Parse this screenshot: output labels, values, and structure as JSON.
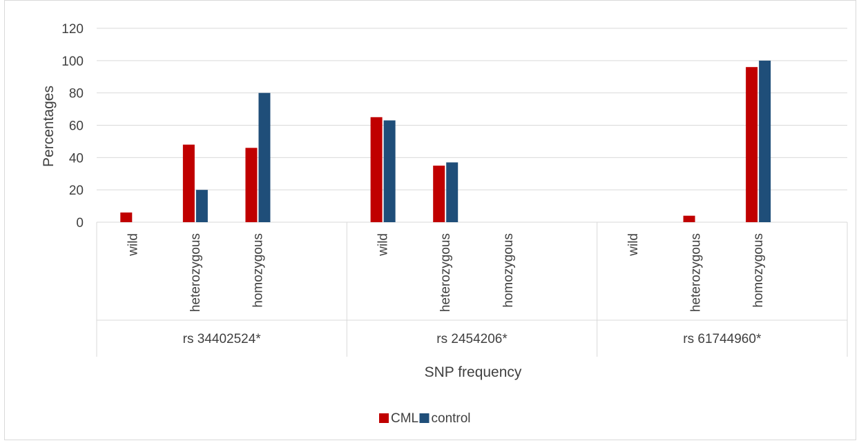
{
  "chart_data": {
    "type": "bar",
    "title": "",
    "xlabel": "SNP frequency",
    "ylabel": "Percentages",
    "ylim": [
      0,
      120
    ],
    "yticks": [
      0,
      20,
      40,
      60,
      80,
      100,
      120
    ],
    "grid": true,
    "legend_position": "bottom",
    "groups": [
      {
        "label": "rs 34402524*",
        "categories": [
          "wild",
          "heterozygous",
          "homozygous"
        ]
      },
      {
        "label": "rs 2454206*",
        "categories": [
          "wild",
          "heterozygous",
          "homozygous"
        ]
      },
      {
        "label": "rs 61744960*",
        "categories": [
          "wild",
          "heterozygous",
          "homozygous"
        ]
      }
    ],
    "series": [
      {
        "name": "CML",
        "color": "#c00000",
        "values": [
          [
            6,
            48,
            46
          ],
          [
            65,
            35,
            0
          ],
          [
            0,
            4,
            96
          ]
        ]
      },
      {
        "name": "control",
        "color": "#1f4e79",
        "values": [
          [
            0,
            20,
            80
          ],
          [
            63,
            37,
            0
          ],
          [
            0,
            0,
            100
          ]
        ]
      }
    ]
  }
}
